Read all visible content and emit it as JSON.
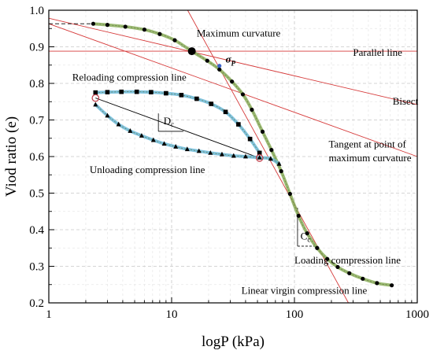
{
  "chart_data": {
    "type": "scatter",
    "xlabel": "logP (kPa)",
    "ylabel": "Viod ratio (e)",
    "xscale": "log",
    "xlim": [
      1,
      1000
    ],
    "ylim": [
      0.2,
      1.0
    ],
    "grid": true,
    "x_ticks": [
      {
        "value": 1,
        "label": "1"
      },
      {
        "value": 10,
        "label": "10"
      },
      {
        "value": 100,
        "label": "100"
      },
      {
        "value": 1000,
        "label": "1000"
      }
    ],
    "y_ticks": [
      {
        "value": 0.2,
        "label": "0.2"
      },
      {
        "value": 0.3,
        "label": "0.3"
      },
      {
        "value": 0.4,
        "label": "0.4"
      },
      {
        "value": 0.5,
        "label": "0.5"
      },
      {
        "value": 0.6,
        "label": "0.6"
      },
      {
        "value": 0.7,
        "label": "0.7"
      },
      {
        "value": 0.8,
        "label": "0.8"
      },
      {
        "value": 0.9,
        "label": "0.9"
      },
      {
        "value": 1.0,
        "label": "1.0"
      }
    ],
    "series": [
      {
        "name": "Loading compression line",
        "marker": "circle",
        "color": "#000000",
        "curve_color": "#8aae5a",
        "points": [
          [
            2.3,
            0.963
          ],
          [
            3.0,
            0.96
          ],
          [
            4.2,
            0.955
          ],
          [
            6.0,
            0.947
          ],
          [
            8.0,
            0.935
          ],
          [
            10.6,
            0.918
          ],
          [
            14.6,
            0.888
          ],
          [
            19.5,
            0.862
          ],
          [
            24.5,
            0.838
          ],
          [
            31.0,
            0.805
          ],
          [
            38.0,
            0.77
          ],
          [
            45.0,
            0.728
          ],
          [
            55.0,
            0.668
          ],
          [
            65.0,
            0.618
          ],
          [
            78.0,
            0.56
          ],
          [
            92.0,
            0.498
          ],
          [
            108.0,
            0.438
          ],
          [
            127.0,
            0.39
          ],
          [
            153.0,
            0.35
          ],
          [
            185.0,
            0.32
          ],
          [
            225.0,
            0.298
          ],
          [
            280.0,
            0.281
          ],
          [
            360.0,
            0.266
          ],
          [
            470.0,
            0.254
          ],
          [
            620.0,
            0.248
          ]
        ]
      },
      {
        "name": "Reloading compression line",
        "marker": "square",
        "color": "#000000",
        "curve_color": "#6ab8d8",
        "points": [
          [
            2.4,
            0.775
          ],
          [
            3.0,
            0.776
          ],
          [
            3.9,
            0.777
          ],
          [
            5.2,
            0.777
          ],
          [
            6.8,
            0.776
          ],
          [
            9.0,
            0.773
          ],
          [
            12.0,
            0.768
          ],
          [
            16.0,
            0.758
          ],
          [
            21.0,
            0.744
          ],
          [
            27.5,
            0.722
          ],
          [
            35.0,
            0.688
          ],
          [
            43.5,
            0.648
          ],
          [
            52.0,
            0.61
          ]
        ]
      },
      {
        "name": "Unloading compression line",
        "marker": "triangle",
        "color": "#000000",
        "curve_color": "#6ab8d8",
        "points": [
          [
            2.4,
            0.742
          ],
          [
            3.0,
            0.712
          ],
          [
            3.7,
            0.688
          ],
          [
            4.6,
            0.67
          ],
          [
            5.7,
            0.657
          ],
          [
            7.1,
            0.645
          ],
          [
            8.7,
            0.635
          ],
          [
            10.8,
            0.627
          ],
          [
            13.4,
            0.62
          ],
          [
            16.7,
            0.615
          ],
          [
            20.7,
            0.61
          ],
          [
            25.7,
            0.606
          ],
          [
            32.0,
            0.602
          ],
          [
            40.0,
            0.6
          ],
          [
            52.0,
            0.597
          ],
          [
            64.0,
            0.594
          ],
          [
            75.0,
            0.58
          ]
        ]
      }
    ],
    "annotations": [
      {
        "text": "Maximum curvature",
        "x": 16.0,
        "y": 0.928
      },
      {
        "text": "Parallel line",
        "x": 300.0,
        "y": 0.875
      },
      {
        "text": "Bisect",
        "x": 630.0,
        "y": 0.742
      },
      {
        "text": "Tangent at point of",
        "x": 190.0,
        "y": 0.625
      },
      {
        "text": "maximum curvature",
        "x": 190.0,
        "y": 0.587
      },
      {
        "text": "Reloading compression line",
        "x": 1.55,
        "y": 0.808
      },
      {
        "text": "Unloading compression line",
        "x": 2.15,
        "y": 0.555
      },
      {
        "text": "Loading compression line",
        "x": 100.0,
        "y": 0.308
      },
      {
        "text": "Linear virgin compression line",
        "x": 37.0,
        "y": 0.225
      }
    ],
    "symbols": {
      "sigma_main": "σ",
      "sigma_sub": "P",
      "cc_main": "C",
      "cc_sub": "c",
      "dc_main": "D",
      "dc_sub": "c"
    },
    "colors": {
      "reference_lines": "#d63a3a",
      "loading_curve": "#8aae5a",
      "loop_curve": "#6ab8d8",
      "preconsolidation_marker": "#3b63c8",
      "loop_endpoint_marker": "#c2444f"
    }
  }
}
